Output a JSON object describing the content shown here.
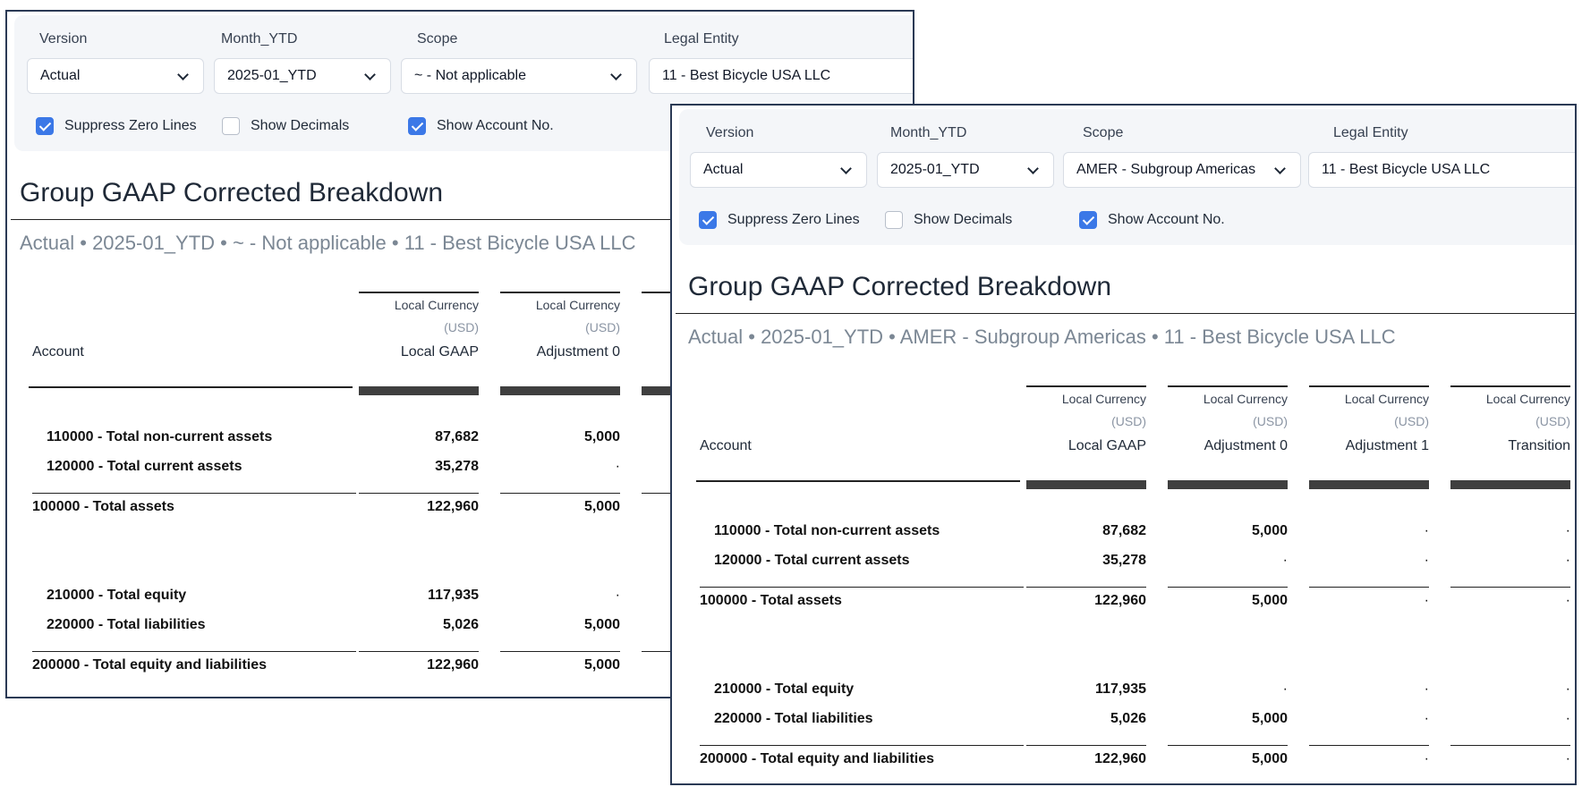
{
  "filters": {
    "version_label": "Version",
    "month_label": "Month_YTD",
    "scope_label": "Scope",
    "entity_label": "Legal Entity",
    "suppress_label": "Suppress Zero Lines",
    "decimals_label": "Show Decimals",
    "account_no_label": "Show Account No."
  },
  "views": [
    {
      "version": "Actual",
      "month": "2025-01_YTD",
      "scope": "~ - Not applicable",
      "entity": "11 - Best Bicycle USA LLC",
      "suppress_zero": true,
      "show_decimals": false,
      "show_account_no": true,
      "title": "Group GAAP Corrected Breakdown",
      "subtitle": "Actual • 2025-01_YTD • ~ - Not applicable • 11 - Best Bicycle USA LLC"
    },
    {
      "version": "Actual",
      "month": "2025-01_YTD",
      "scope": "AMER - Subgroup Americas",
      "entity": "11 - Best Bicycle USA LLC",
      "suppress_zero": true,
      "show_decimals": false,
      "show_account_no": true,
      "title": "Group GAAP Corrected Breakdown",
      "subtitle": "Actual • 2025-01_YTD • AMER - Subgroup Americas • 11 - Best Bicycle USA LLC"
    }
  ],
  "table": {
    "account_header": "Account",
    "columns": [
      {
        "line1": "Local Currency",
        "line2": "(USD)",
        "line3": "Local GAAP"
      },
      {
        "line1": "Local Currency",
        "line2": "(USD)",
        "line3": "Adjustment 0"
      },
      {
        "line1": "Local Currency",
        "line2": "(USD)",
        "line3": "Adjustment 1"
      },
      {
        "line1": "Local Currency",
        "line2": "(USD)",
        "line3": "Transition"
      }
    ],
    "rows": [
      {
        "label": "110000 - Total non-current assets",
        "values": [
          "87,682",
          "5,000",
          "·",
          "·"
        ]
      },
      {
        "label": "120000 - Total current assets",
        "values": [
          "35,278",
          "·",
          "·",
          "·"
        ]
      },
      {
        "label": "100000 - Total assets",
        "values": [
          "122,960",
          "5,000",
          "·",
          "·"
        ]
      },
      {
        "label": "210000 - Total equity",
        "values": [
          "117,935",
          "·",
          "·",
          "·"
        ]
      },
      {
        "label": "220000 - Total liabilities",
        "values": [
          "5,026",
          "5,000",
          "·",
          "·"
        ]
      },
      {
        "label": "200000 - Total equity and liabilities",
        "values": [
          "122,960",
          "5,000",
          "·",
          "·"
        ]
      }
    ]
  }
}
